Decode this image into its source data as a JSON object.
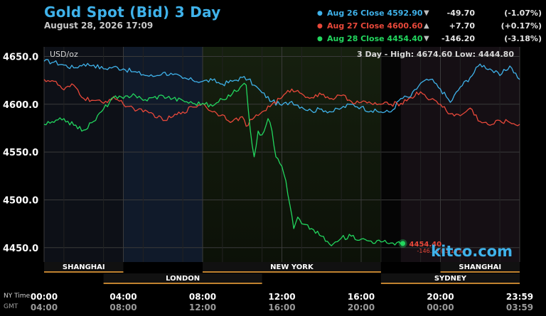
{
  "header": {
    "title": "Gold Spot (Bid) 3 Day",
    "date": "August 28, 2026 17:09"
  },
  "legend": [
    {
      "label": "Aug 26 Close 4592.90",
      "arrow": "▼",
      "change": "-49.70",
      "pct": "(-1.07%)",
      "color": "#3fb2ea"
    },
    {
      "label": "Aug 27 Close 4600.60",
      "arrow": "▲",
      "change": "+7.70",
      "pct": "(+0.17%)",
      "color": "#e8483a"
    },
    {
      "label": "Aug 28 Close 4454.40",
      "arrow": "▼",
      "change": "-146.20",
      "pct": "(-3.18%)",
      "color": "#22d65e"
    }
  ],
  "colors": {
    "grid": "#3a3a3a",
    "axis_text": "#ffffff",
    "time_text_bottom": "#9a9a9a",
    "session_bar": "#c0822f",
    "watermark": "#3fb2ea",
    "change_label": "#e8483a"
  },
  "chart_data": {
    "type": "line",
    "unit_label": "USD/oz",
    "stats": "3 Day - High: 4674.60  Low: 4444.80",
    "ylim": [
      4435,
      4660
    ],
    "yticks": [
      4450.0,
      4500.0,
      4550.0,
      4600.0,
      4650.0
    ],
    "ytick_labels": [
      "4450.0",
      "4500.0",
      "4550.0",
      "4600.0",
      "4650.0"
    ],
    "xlim_hours": [
      0,
      24
    ],
    "xtick_hours": [
      0,
      4,
      8,
      12,
      16,
      20,
      24
    ],
    "xticks_ny": [
      "00:00",
      "04:00",
      "08:00",
      "12:00",
      "16:00",
      "20:00",
      "23:59"
    ],
    "xticks_gmt": [
      "04:00",
      "08:00",
      "12:00",
      "16:00",
      "20:00",
      "00:00",
      "03:59"
    ],
    "timezone_labels": [
      "NY Time",
      "GMT"
    ],
    "sessions": [
      {
        "name": "SHANGHAI",
        "start": 0,
        "end": 4,
        "row": 1
      },
      {
        "name": "NEW YORK",
        "start": 8,
        "end": 17,
        "row": 1
      },
      {
        "name": "SHANGHAI",
        "start": 20,
        "end": 24,
        "row": 1
      },
      {
        "name": "LONDON",
        "start": 3,
        "end": 11,
        "row": 2
      },
      {
        "name": "SYDNEY",
        "start": 17,
        "end": 24,
        "row": 2
      }
    ],
    "last_price": {
      "x": 18.1,
      "value": 4454.4,
      "label": "4454.40",
      "change_label": "-146.20 (-3.18%)"
    },
    "watermark": "kitco.com",
    "series": [
      {
        "name": "Aug 26",
        "color": "#3fb2ea",
        "x": [
          0,
          0.5,
          1,
          1.5,
          2,
          2.5,
          3,
          3.5,
          4,
          4.5,
          5,
          5.5,
          6,
          6.5,
          7,
          7.5,
          8,
          8.5,
          9,
          9.5,
          10,
          10.3,
          10.6,
          11,
          11.5,
          12,
          12.5,
          13,
          13.5,
          14,
          14.5,
          15,
          15.5,
          16,
          16.5,
          17,
          17.5,
          18,
          18.5,
          19,
          19.5,
          20,
          20.5,
          21,
          21.5,
          22,
          22.5,
          23,
          23.5,
          24
        ],
        "values": [
          4645,
          4644,
          4641,
          4638,
          4642,
          4641,
          4637,
          4639,
          4637,
          4634,
          4631,
          4629,
          4633,
          4631,
          4627,
          4625,
          4624,
          4625,
          4621,
          4624,
          4628,
          4626,
          4620,
          4612,
          4603,
          4599,
          4603,
          4597,
          4593,
          4595,
          4592,
          4596,
          4600,
          4597,
          4593,
          4592,
          4592,
          4606,
          4608,
          4622,
          4626,
          4616,
          4602,
          4618,
          4628,
          4642,
          4637,
          4630,
          4640,
          4626
        ]
      },
      {
        "name": "Aug 27",
        "color": "#e8483a",
        "x": [
          0,
          0.5,
          1,
          1.5,
          2,
          2.5,
          3,
          3.5,
          4,
          4.5,
          5,
          5.5,
          6,
          6.5,
          7,
          7.5,
          8,
          8.5,
          9,
          9.5,
          10,
          10.2,
          10.5,
          11,
          11.5,
          12,
          12.5,
          13,
          13.5,
          14,
          14.5,
          15,
          15.5,
          16,
          16.5,
          17,
          17.5,
          18,
          18.5,
          19,
          19.5,
          20,
          20.5,
          21,
          21.5,
          22,
          22.5,
          23,
          23.5,
          24
        ],
        "values": [
          4626,
          4624,
          4615,
          4620,
          4606,
          4604,
          4601,
          4608,
          4600,
          4596,
          4592,
          4590,
          4583,
          4587,
          4592,
          4597,
          4601,
          4592,
          4589,
          4582,
          4587,
          4577,
          4584,
          4592,
          4600,
          4607,
          4616,
          4611,
          4607,
          4610,
          4606,
          4609,
          4603,
          4602,
          4601,
          4600,
          4600,
          4601,
          4607,
          4613,
          4605,
          4600,
          4590,
          4588,
          4596,
          4582,
          4578,
          4583,
          4581,
          4579
        ]
      },
      {
        "name": "Aug 28",
        "color": "#22d65e",
        "x": [
          0,
          0.5,
          1,
          1.5,
          2,
          2.5,
          3,
          3.5,
          4,
          4.5,
          5,
          5.5,
          6,
          6.5,
          7,
          7.5,
          8,
          8.5,
          9,
          9.5,
          10,
          10.2,
          10.4,
          10.6,
          10.8,
          11,
          11.3,
          11.5,
          11.7,
          12,
          12.2,
          12.4,
          12.6,
          12.8,
          13,
          13.5,
          14,
          14.5,
          15,
          15.5,
          16,
          16.5,
          17,
          17.5,
          18.1
        ],
        "values": [
          4579,
          4581,
          4585,
          4578,
          4573,
          4582,
          4595,
          4607,
          4606,
          4611,
          4604,
          4607,
          4609,
          4606,
          4604,
          4601,
          4601,
          4598,
          4605,
          4611,
          4620,
          4620,
          4574,
          4545,
          4572,
          4568,
          4585,
          4572,
          4545,
          4535,
          4520,
          4495,
          4470,
          4482,
          4475,
          4470,
          4462,
          4452,
          4460,
          4462,
          4459,
          4457,
          4456,
          4455,
          4454.4
        ]
      }
    ]
  }
}
